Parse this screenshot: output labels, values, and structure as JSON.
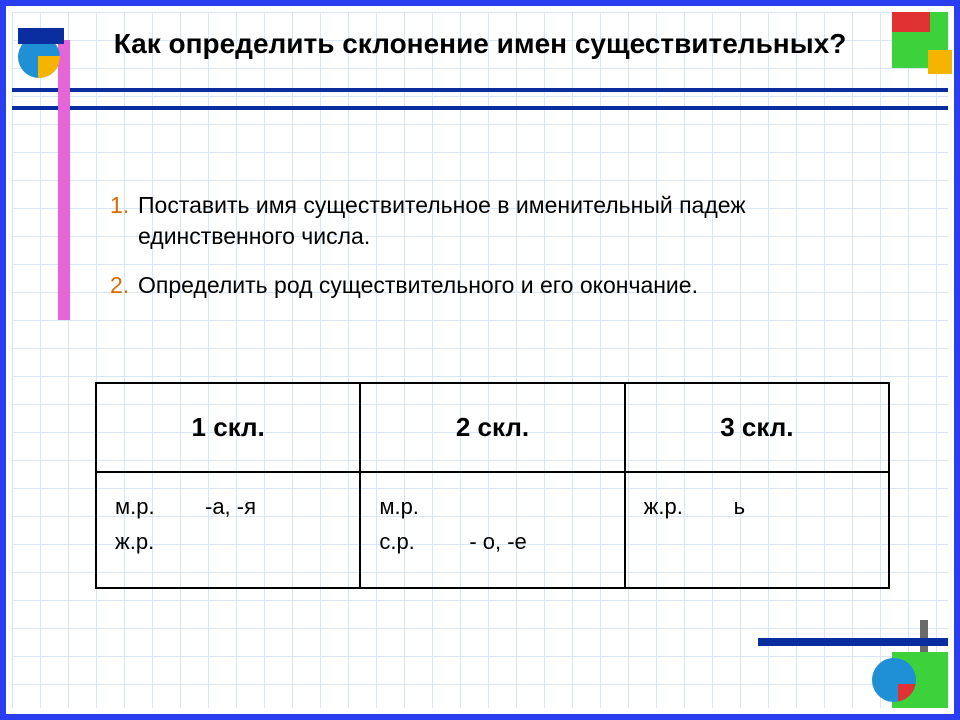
{
  "frame_color": "#2a3ef0",
  "grid_line_color": "#d8e6f5",
  "hline_color": "#0a2ea0",
  "hline_positions": [
    88,
    106
  ],
  "title": "Как определить склонение имен существительных?",
  "title_fontsize": 28,
  "list": {
    "number_color": "#d86a00",
    "fontsize": 23,
    "items": [
      {
        "num": "1.",
        "text": "Поставить имя существительное в именительный падеж единственного числа."
      },
      {
        "num": "2.",
        "text": "Определить род существительного и его окончание."
      }
    ]
  },
  "table": {
    "border_color": "#000000",
    "header_fontsize": 26,
    "cell_fontsize": 22,
    "columns": [
      "1 скл.",
      "2 скл.",
      "3 скл."
    ],
    "rows": [
      [
        [
          {
            "gender": "м.р.",
            "endings": "-а, -я"
          },
          {
            "gender": "ж.р.",
            "endings": ""
          }
        ],
        [
          {
            "gender": "м.р.",
            "endings": ""
          },
          {
            "gender": "с.р.",
            "endings": "- о,  -е"
          }
        ],
        [
          {
            "gender": "ж.р.",
            "endings": "ь"
          }
        ]
      ]
    ]
  },
  "deco": {
    "tl_square_color": "#0a2ea0",
    "tl_circle_color": "#1f8fd6",
    "tl_circle_accent": "#f5b400",
    "pink_bar_color": "#e766d7",
    "tr_green": "#3bd23b",
    "tr_red": "#e03232",
    "tr_yellow": "#f5b400",
    "br_green": "#3bd23b",
    "br_circle": "#1f8fd6",
    "br_red": "#e03232",
    "br_hline": "#0a2ea0",
    "br_vline": "#6a6a6a"
  }
}
